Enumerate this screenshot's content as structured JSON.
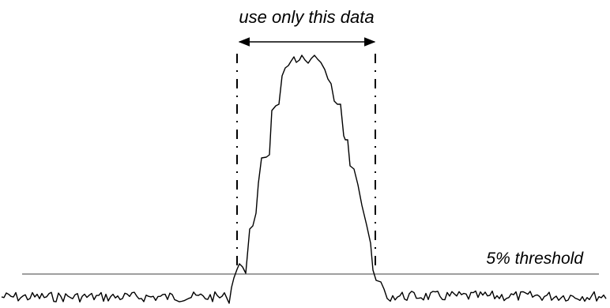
{
  "labels": {
    "range": "use only this data",
    "threshold": "5% threshold"
  },
  "colors": {
    "ink": "#000000",
    "threshold_line": "#666666",
    "background": "#ffffff"
  }
}
